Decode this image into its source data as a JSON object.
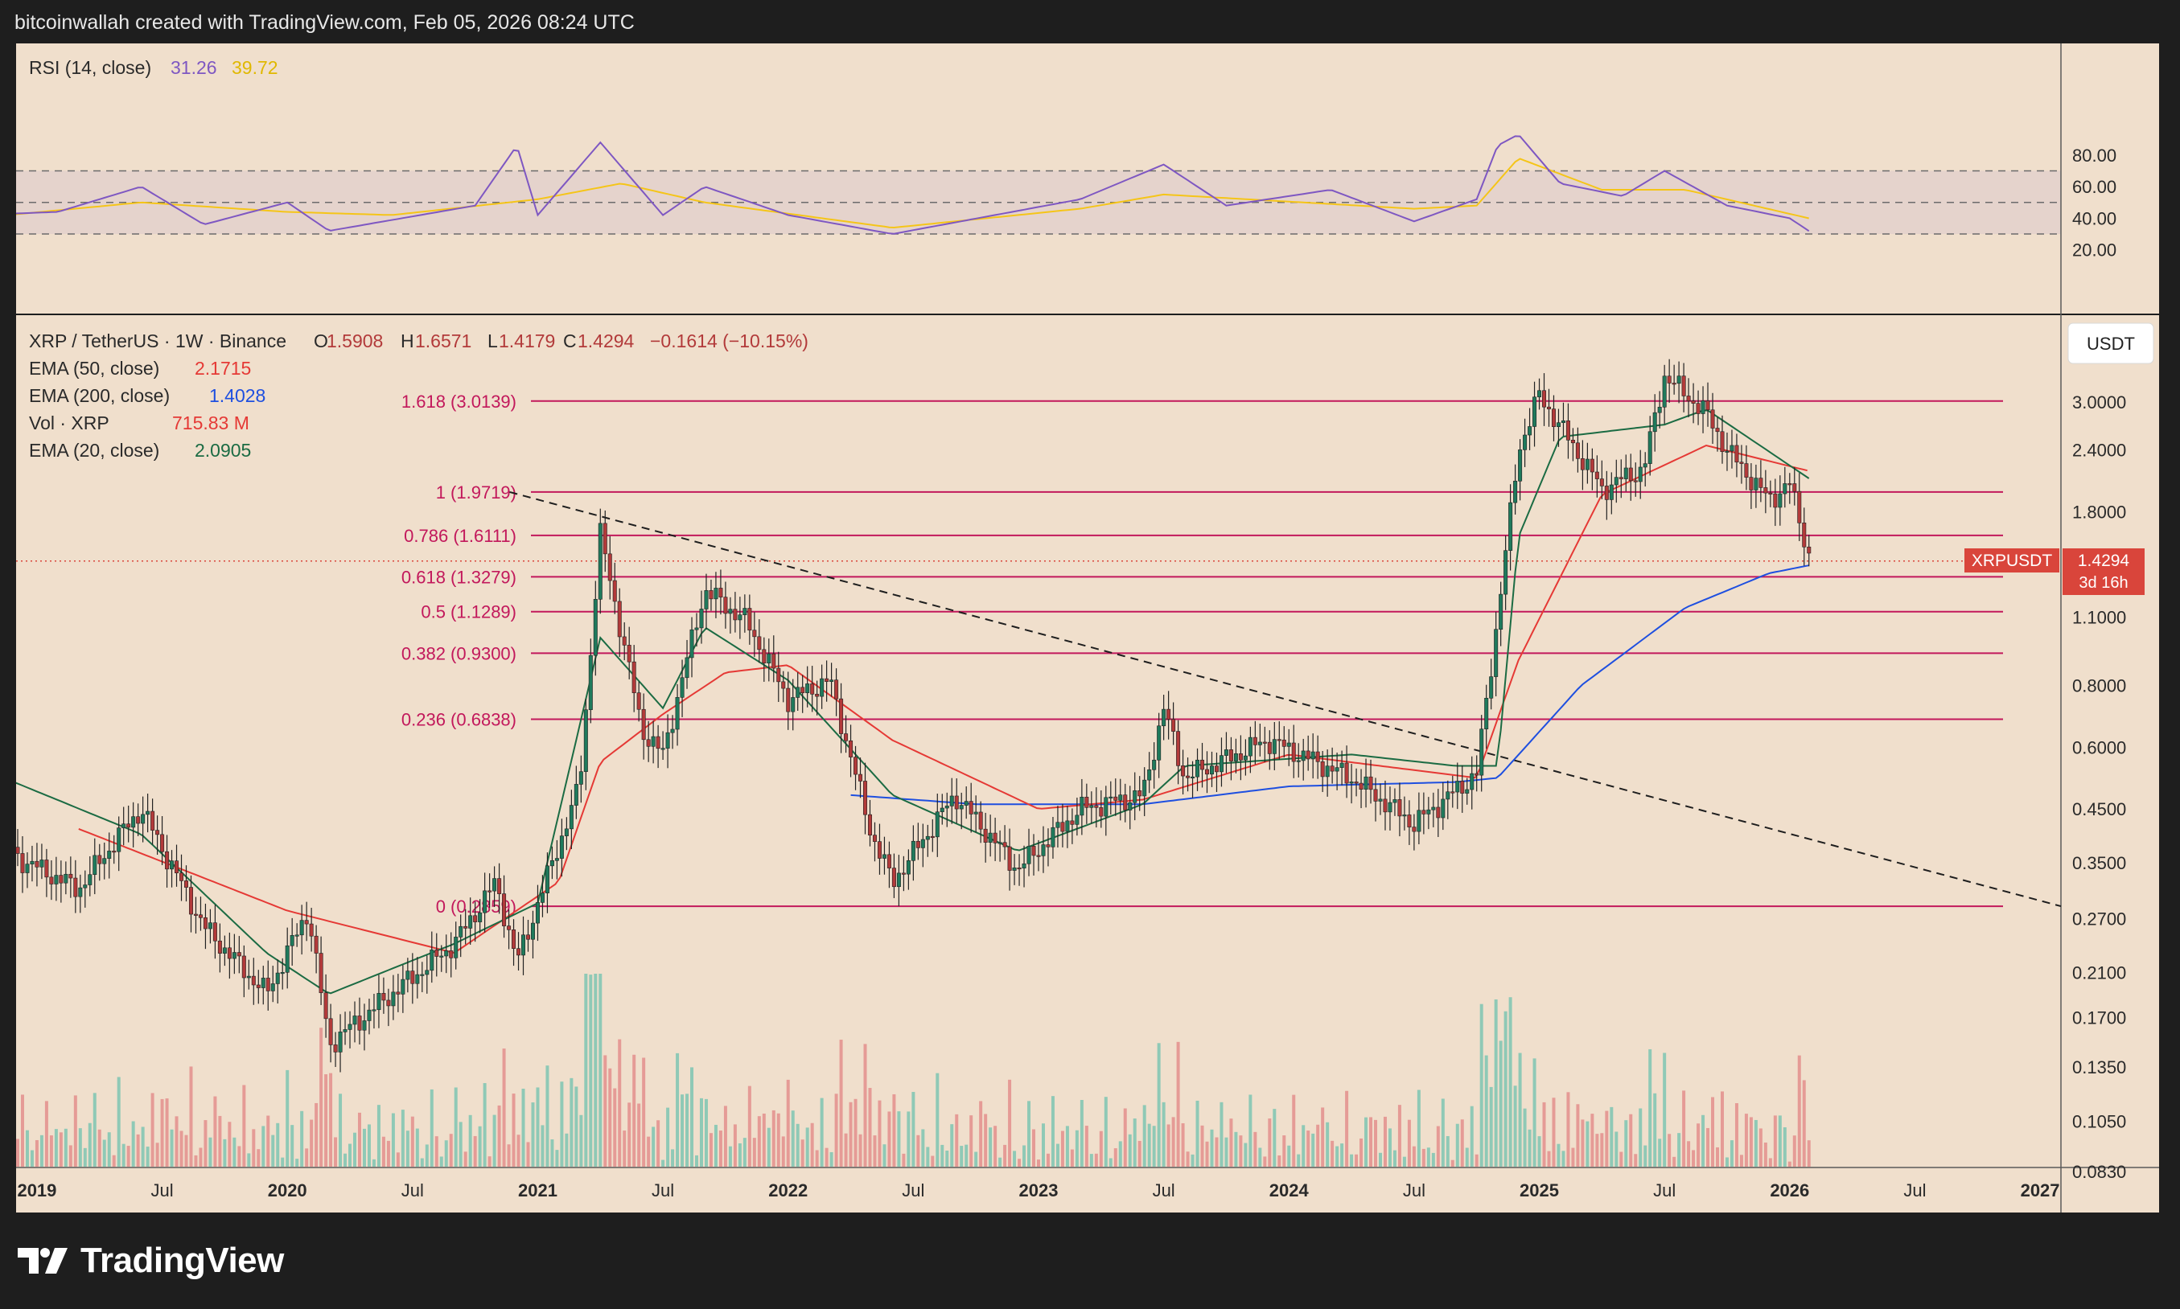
{
  "header": {
    "title": "bitcoinwallah created with TradingView.com, Feb 05, 2026 08:24 UTC"
  },
  "footer": {
    "brand": "TradingView"
  },
  "rsi_panel": {
    "label": "RSI (14, close)",
    "rsi_value": "31.26",
    "ma_value": "39.72",
    "ticks": [
      "80.00",
      "60.00",
      "40.00",
      "20.00"
    ],
    "levels": [
      70,
      50,
      30
    ]
  },
  "price_panel": {
    "symbol_line": "XRP / TetherUS · 1W · Binance",
    "ohlc": {
      "o_label": "O",
      "o": "1.5908",
      "h_label": "H",
      "h": "1.6571",
      "l_label": "L",
      "l": "1.4179",
      "c_label": "C",
      "c": "1.4294",
      "chg": "−0.1614 (−10.15%)"
    },
    "legend": [
      {
        "label": "EMA (50, close)",
        "value": "2.1715",
        "color": "#e53935"
      },
      {
        "label": "EMA (200, close)",
        "value": "1.4028",
        "color": "#1e4fe0"
      },
      {
        "label": "Vol · XRP",
        "value": "715.83 M",
        "color": "#e53935"
      },
      {
        "label": "EMA (20, close)",
        "value": "2.0905",
        "color": "#1b6b43"
      }
    ],
    "currency_button": "USDT",
    "price_ticks": [
      "3.0000",
      "2.4000",
      "1.8000",
      "1.1000",
      "0.8000",
      "0.6000",
      "0.4500",
      "0.3500",
      "0.2700",
      "0.2100",
      "0.1700",
      "0.1350",
      "0.1050",
      "0.0830"
    ],
    "price_tag": {
      "symbol": "XRPUSDT",
      "price": "1.4294",
      "countdown": "3d 16h"
    },
    "time_ticks": [
      "2019",
      "Jul",
      "2020",
      "Jul",
      "2021",
      "Jul",
      "2022",
      "Jul",
      "2023",
      "Jul",
      "2024",
      "Jul",
      "2025",
      "Jul",
      "2026",
      "Jul",
      "2027"
    ]
  },
  "colors": {
    "fib": "#c2185b",
    "up": "#1f7a5c",
    "down": "#b23a3a",
    "rsi": "#7e57c2",
    "rsi_ma": "#f5c518",
    "ema20": "#1b6b43",
    "ema50": "#e53935",
    "ema200": "#1e4fe0"
  },
  "chart_data": {
    "type": "candlestick",
    "title": "XRP / TetherUS · 1W · Binance",
    "scale": "log",
    "fib_levels": [
      {
        "label": "1.618 (3.0139)",
        "value": 3.0139
      },
      {
        "label": "1 (1.9719)",
        "value": 1.9719
      },
      {
        "label": "0.786 (1.6111)",
        "value": 1.6111
      },
      {
        "label": "0.618 (1.3279)",
        "value": 1.3279
      },
      {
        "label": "0.5 (1.1289)",
        "value": 1.1289
      },
      {
        "label": "0.382 (0.9300)",
        "value": 0.93
      },
      {
        "label": "0.236 (0.6838)",
        "value": 0.6838
      },
      {
        "label": "0 (0.2859)",
        "value": 0.2859
      }
    ],
    "trendline": {
      "from": {
        "date": "2021-01",
        "price": 1.9719
      },
      "to": {
        "date": "2027-02",
        "price": 0.2859
      }
    },
    "price_path": [
      [
        "2018-10",
        0.52
      ],
      [
        "2018-12",
        0.36
      ],
      [
        "2019-03",
        0.31
      ],
      [
        "2019-05",
        0.4
      ],
      [
        "2019-06",
        0.45
      ],
      [
        "2019-09",
        0.26
      ],
      [
        "2019-12",
        0.19
      ],
      [
        "2020-02",
        0.28
      ],
      [
        "2020-03",
        0.15
      ],
      [
        "2020-06",
        0.19
      ],
      [
        "2020-09",
        0.24
      ],
      [
        "2020-11",
        0.32
      ],
      [
        "2020-12",
        0.22
      ],
      [
        "2021-03",
        0.5
      ],
      [
        "2021-04",
        1.62
      ],
      [
        "2021-06",
        0.65
      ],
      [
        "2021-07",
        0.58
      ],
      [
        "2021-09",
        1.25
      ],
      [
        "2021-11",
        1.08
      ],
      [
        "2022-01",
        0.75
      ],
      [
        "2022-03",
        0.82
      ],
      [
        "2022-05",
        0.4
      ],
      [
        "2022-06",
        0.32
      ],
      [
        "2022-09",
        0.48
      ],
      [
        "2022-12",
        0.34
      ],
      [
        "2023-03",
        0.45
      ],
      [
        "2023-06",
        0.48
      ],
      [
        "2023-07",
        0.72
      ],
      [
        "2023-08",
        0.52
      ],
      [
        "2023-12",
        0.62
      ],
      [
        "2024-04",
        0.52
      ],
      [
        "2024-07",
        0.42
      ],
      [
        "2024-10",
        0.53
      ],
      [
        "2024-11",
        1.1
      ],
      [
        "2024-12",
        2.4
      ],
      [
        "2025-01",
        3.1
      ],
      [
        "2025-04",
        2.0
      ],
      [
        "2025-06",
        2.2
      ],
      [
        "2025-07",
        3.4
      ],
      [
        "2025-09",
        2.85
      ],
      [
        "2025-10",
        2.4
      ],
      [
        "2025-12",
        1.9
      ],
      [
        "2026-01",
        2.05
      ],
      [
        "2026-02",
        1.4294
      ]
    ],
    "ema20_path": [
      [
        "2018-10",
        0.55
      ],
      [
        "2019-06",
        0.4
      ],
      [
        "2019-12",
        0.23
      ],
      [
        "2020-03",
        0.19
      ],
      [
        "2020-09",
        0.24
      ],
      [
        "2021-01",
        0.29
      ],
      [
        "2021-04",
        1.0
      ],
      [
        "2021-07",
        0.72
      ],
      [
        "2021-09",
        1.05
      ],
      [
        "2022-01",
        0.82
      ],
      [
        "2022-06",
        0.48
      ],
      [
        "2022-12",
        0.37
      ],
      [
        "2023-06",
        0.46
      ],
      [
        "2023-08",
        0.55
      ],
      [
        "2024-04",
        0.58
      ],
      [
        "2024-09",
        0.55
      ],
      [
        "2024-11",
        0.55
      ],
      [
        "2024-12",
        1.6
      ],
      [
        "2025-02",
        2.55
      ],
      [
        "2025-07",
        2.7
      ],
      [
        "2025-09",
        2.9
      ],
      [
        "2026-02",
        2.0905
      ]
    ],
    "ema50_path": [
      [
        "2019-03",
        0.41
      ],
      [
        "2020-01",
        0.28
      ],
      [
        "2020-09",
        0.23
      ],
      [
        "2021-02",
        0.32
      ],
      [
        "2021-04",
        0.56
      ],
      [
        "2021-07",
        0.7
      ],
      [
        "2021-10",
        0.85
      ],
      [
        "2022-01",
        0.88
      ],
      [
        "2022-06",
        0.62
      ],
      [
        "2023-01",
        0.45
      ],
      [
        "2023-06",
        0.47
      ],
      [
        "2024-01",
        0.58
      ],
      [
        "2024-10",
        0.52
      ],
      [
        "2024-12",
        0.9
      ],
      [
        "2025-04",
        1.95
      ],
      [
        "2025-09",
        2.45
      ],
      [
        "2026-02",
        2.1715
      ]
    ],
    "ema200_path": [
      [
        "2022-04",
        0.48
      ],
      [
        "2022-10",
        0.46
      ],
      [
        "2023-06",
        0.46
      ],
      [
        "2024-01",
        0.5
      ],
      [
        "2024-09",
        0.51
      ],
      [
        "2024-11",
        0.52
      ],
      [
        "2025-03",
        0.8
      ],
      [
        "2025-08",
        1.15
      ],
      [
        "2025-12",
        1.35
      ],
      [
        "2026-02",
        1.4028
      ]
    ],
    "rsi_path": [
      [
        "2018-10",
        42
      ],
      [
        "2019-02",
        44
      ],
      [
        "2019-06",
        60
      ],
      [
        "2019-09",
        36
      ],
      [
        "2020-01",
        50
      ],
      [
        "2020-03",
        32
      ],
      [
        "2020-10",
        48
      ],
      [
        "2020-12",
        86
      ],
      [
        "2021-01",
        42
      ],
      [
        "2021-04",
        88
      ],
      [
        "2021-07",
        42
      ],
      [
        "2021-09",
        60
      ],
      [
        "2022-01",
        42
      ],
      [
        "2022-06",
        30
      ],
      [
        "2023-03",
        52
      ],
      [
        "2023-07",
        74
      ],
      [
        "2023-10",
        48
      ],
      [
        "2024-03",
        58
      ],
      [
        "2024-07",
        38
      ],
      [
        "2024-10",
        52
      ],
      [
        "2024-11",
        86
      ],
      [
        "2024-12",
        93
      ],
      [
        "2025-02",
        62
      ],
      [
        "2025-05",
        54
      ],
      [
        "2025-07",
        70
      ],
      [
        "2025-10",
        48
      ],
      [
        "2026-01",
        40
      ],
      [
        "2026-02",
        31.26
      ]
    ],
    "rsi_ma_path": [
      [
        "2018-10",
        40
      ],
      [
        "2019-06",
        50
      ],
      [
        "2020-01",
        44
      ],
      [
        "2020-06",
        42
      ],
      [
        "2021-01",
        52
      ],
      [
        "2021-05",
        62
      ],
      [
        "2021-09",
        50
      ],
      [
        "2022-06",
        34
      ],
      [
        "2023-03",
        46
      ],
      [
        "2023-07",
        55
      ],
      [
        "2024-07",
        46
      ],
      [
        "2024-10",
        48
      ],
      [
        "2024-12",
        78
      ],
      [
        "2025-04",
        58
      ],
      [
        "2025-08",
        58
      ],
      [
        "2026-02",
        39.72
      ]
    ]
  }
}
